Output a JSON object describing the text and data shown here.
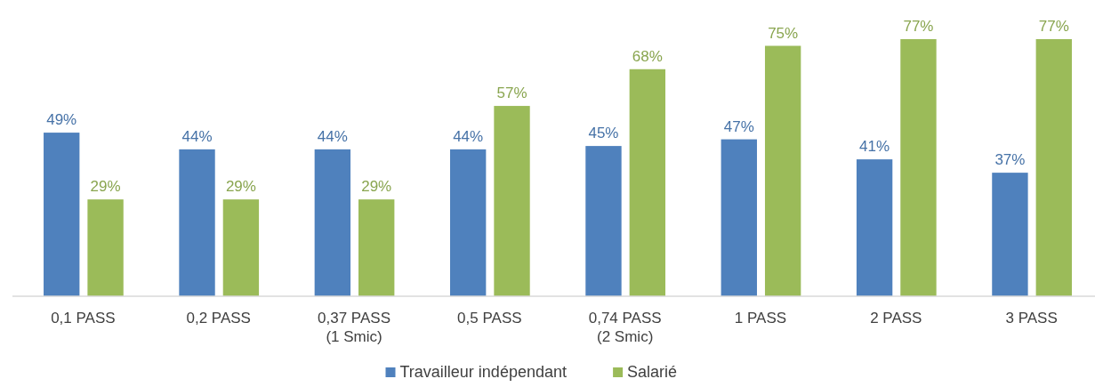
{
  "chart_data": {
    "type": "bar",
    "categories": [
      "0,1 PASS",
      "0,2 PASS",
      "0,37 PASS\n(1 Smic)",
      "0,5 PASS",
      "0,74 PASS\n(2 Smic)",
      "1 PASS",
      "2 PASS",
      "3 PASS"
    ],
    "series": [
      {
        "name": "Travailleur indépendant",
        "color": "#4f81bd",
        "values": [
          49,
          44,
          44,
          44,
          45,
          47,
          41,
          37
        ],
        "value_labels": [
          "49%",
          "44%",
          "44%",
          "44%",
          "45%",
          "47%",
          "41%",
          "37%"
        ]
      },
      {
        "name": "Salarié",
        "color": "#9bbb59",
        "values": [
          29,
          29,
          29,
          57,
          68,
          75,
          77,
          77
        ],
        "value_labels": [
          "29%",
          "29%",
          "29%",
          "57%",
          "68%",
          "75%",
          "77%",
          "77%"
        ]
      }
    ],
    "ylim": [
      0,
      77
    ],
    "tick_labels": "x",
    "legend": "bottom",
    "grid": false
  }
}
